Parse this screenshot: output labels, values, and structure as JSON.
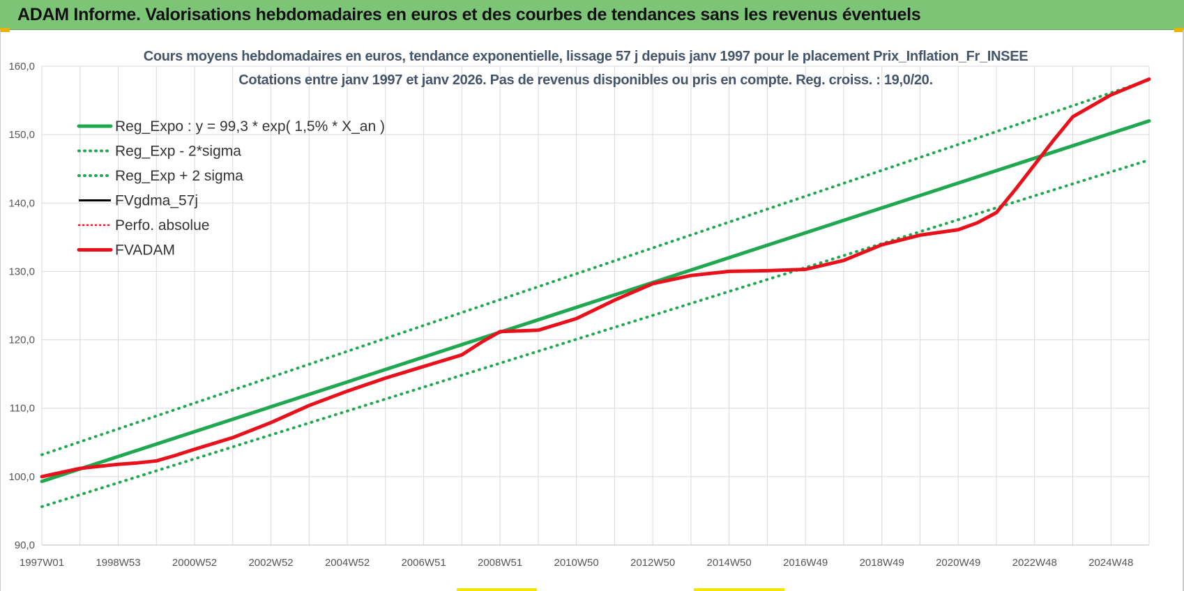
{
  "banner": {
    "title": "ADAM Informe. Valorisations hebdomadaires en euros et des courbes de tendances sans les revenus éventuels"
  },
  "colors": {
    "banner_bg": "#7cc576",
    "green": "#1fa84f",
    "red": "#e8101a",
    "black": "#000000",
    "title_text": "#44546a"
  },
  "chart_data": {
    "type": "line",
    "title": "Cours moyens hebdomadaires en euros, tendance exponentielle, lissage 57 j depuis janv 1997 pour le placement Prix_Inflation_Fr_INSEE",
    "subtitle": "Cotations entre janv 1997 et janv 2026. Pas de revenus disponibles ou pris en compte. Reg. croiss. : 19,0/20.",
    "xlabel": "",
    "ylabel": "",
    "ylim": [
      90,
      160
    ],
    "yticks": [
      90,
      100,
      110,
      120,
      130,
      140,
      150,
      160
    ],
    "ytick_labels": [
      "90,0",
      "100,0",
      "110,0",
      "120,0",
      "130,0",
      "140,0",
      "150,0",
      "160,0"
    ],
    "x_range": [
      1997.0,
      2026.0
    ],
    "xtick_labels": [
      "1997W01",
      "1998W53",
      "2000W52",
      "2002W52",
      "2004W52",
      "2006W51",
      "2008W51",
      "2010W50",
      "2012W50",
      "2014W50",
      "2016W49",
      "2018W49",
      "2020W49",
      "2022W48",
      "2024W48"
    ],
    "xtick_positions": [
      1997.0,
      1999.0,
      2001.0,
      2003.0,
      2005.0,
      2007.0,
      2009.0,
      2011.0,
      2013.0,
      2015.0,
      2017.0,
      2019.0,
      2021.0,
      2023.0,
      2025.0
    ],
    "grid": true,
    "legend_position": "top-left",
    "series": [
      {
        "name": "Reg_Expo : y = 99,3 * exp( 1,5% *  X_an )",
        "style": "solid-thick",
        "color": "#1fa84f",
        "x": [
          1997.0,
          2026.0
        ],
        "values": [
          99.3,
          152.0
        ]
      },
      {
        "name": "Reg_Exp - 2*sigma",
        "style": "dotted",
        "color": "#1fa84f",
        "x": [
          1997.0,
          2026.0
        ],
        "values": [
          95.6,
          146.3
        ]
      },
      {
        "name": "Reg_Exp + 2 sigma",
        "style": "dotted",
        "color": "#1fa84f",
        "x": [
          1997.0,
          2026.0
        ],
        "values": [
          103.2,
          158.0
        ]
      },
      {
        "name": "FVgdma_57j",
        "style": "solid-thin",
        "color": "#000000",
        "x": [],
        "values": []
      },
      {
        "name": "Perfo. absolue",
        "style": "dotted-thin",
        "color": "#e8101a",
        "x": [],
        "values": []
      },
      {
        "name": "FVADAM",
        "style": "solid-thick",
        "color": "#e8101a",
        "x": [
          1997.0,
          1997.5,
          1998.0,
          1998.5,
          1999.0,
          1999.5,
          2000.0,
          2000.5,
          2001.0,
          2002.0,
          2003.0,
          2004.0,
          2005.0,
          2006.0,
          2007.0,
          2008.0,
          2008.5,
          2009.0,
          2010.0,
          2011.0,
          2012.0,
          2013.0,
          2014.0,
          2015.0,
          2016.0,
          2017.0,
          2018.0,
          2019.0,
          2020.0,
          2021.0,
          2021.5,
          2022.0,
          2022.5,
          2023.0,
          2023.5,
          2024.0,
          2025.0,
          2026.0
        ],
        "values": [
          100.0,
          100.6,
          101.2,
          101.5,
          101.8,
          102.0,
          102.3,
          103.1,
          104.0,
          105.7,
          107.9,
          110.4,
          112.5,
          114.4,
          116.1,
          117.8,
          119.6,
          121.2,
          121.4,
          123.1,
          125.8,
          128.2,
          129.4,
          130.0,
          130.1,
          130.3,
          131.6,
          133.9,
          135.3,
          136.1,
          137.1,
          138.6,
          142.0,
          145.6,
          149.2,
          152.6,
          155.8,
          158.1
        ]
      }
    ]
  }
}
